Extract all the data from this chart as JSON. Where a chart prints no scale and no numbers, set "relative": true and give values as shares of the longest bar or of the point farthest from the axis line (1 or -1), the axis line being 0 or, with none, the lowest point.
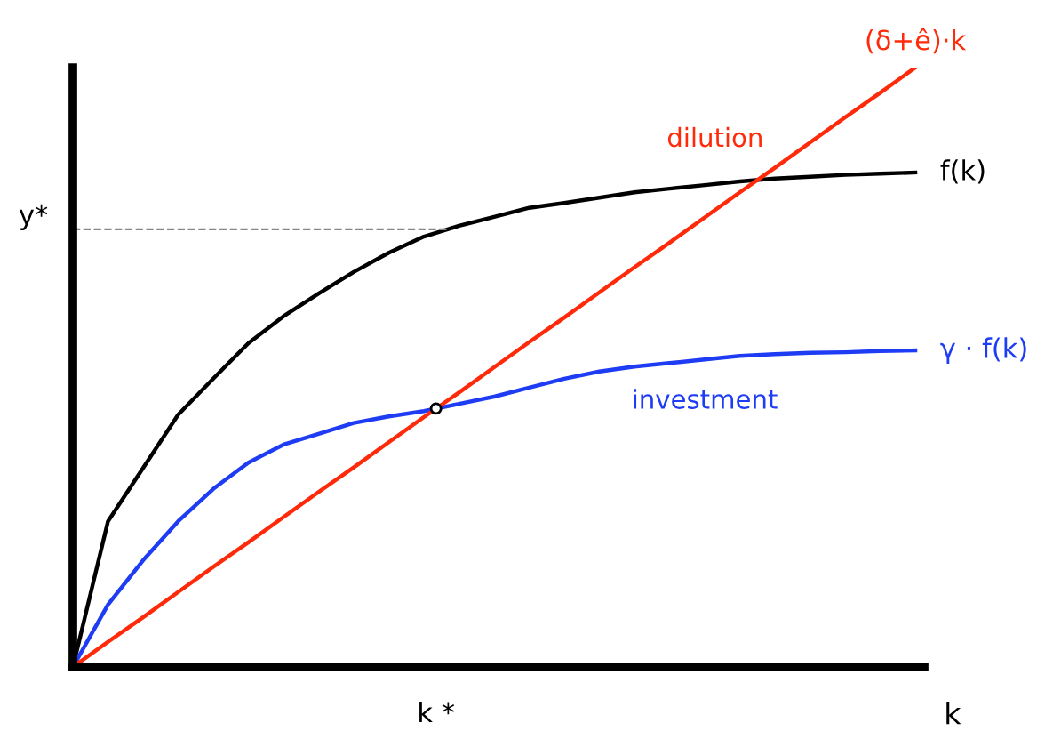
{
  "chart_data": {
    "type": "line",
    "relative": true,
    "xlabel": "k",
    "categories": [
      null,
      null,
      null,
      null,
      null,
      null,
      null,
      null,
      null,
      null,
      null,
      null,
      null,
      null,
      null,
      null,
      null,
      null,
      null,
      null,
      null,
      null,
      null,
      null,
      null
    ],
    "series": [
      {
        "name": "f(k)",
        "color": "#000000",
        "values": [
          0,
          0.243,
          0.332,
          0.421,
          0.481,
          0.54,
          0.585,
          0.623,
          0.659,
          0.691,
          0.718,
          0.736,
          0.751,
          0.766,
          0.774,
          0.783,
          0.792,
          0.798,
          0.804,
          0.81,
          0.815,
          0.818,
          0.821,
          0.823,
          0.825
        ]
      },
      {
        "name": "γ · f(k)",
        "color": "#1f3cf5",
        "values": [
          0,
          0.104,
          0.178,
          0.243,
          0.297,
          0.341,
          0.371,
          0.389,
          0.407,
          0.418,
          0.427,
          0.439,
          0.451,
          0.466,
          0.481,
          0.493,
          0.501,
          0.507,
          0.513,
          0.519,
          0.522,
          0.524,
          0.525,
          0.527,
          0.528
        ]
      },
      {
        "name": "(δ+ê)·k",
        "color": "#ff2a0a",
        "values": [
          0,
          0.042,
          0.083,
          0.125,
          0.167,
          0.208,
          0.25,
          0.292,
          0.333,
          0.375,
          0.417,
          0.458,
          0.5,
          0.542,
          0.583,
          0.625,
          0.667,
          0.708,
          0.75,
          0.792,
          0.833,
          0.875,
          0.917,
          0.958,
          1
        ]
      }
    ],
    "ref_lines": [
      {
        "axis": "y",
        "value": 0.73,
        "label": "y*",
        "color": "#888888",
        "line_style": "dashed"
      }
    ],
    "annotations": [
      "dilution",
      "investment",
      "k *"
    ],
    "grid": false,
    "marker": "none",
    "line_style": "solid"
  }
}
